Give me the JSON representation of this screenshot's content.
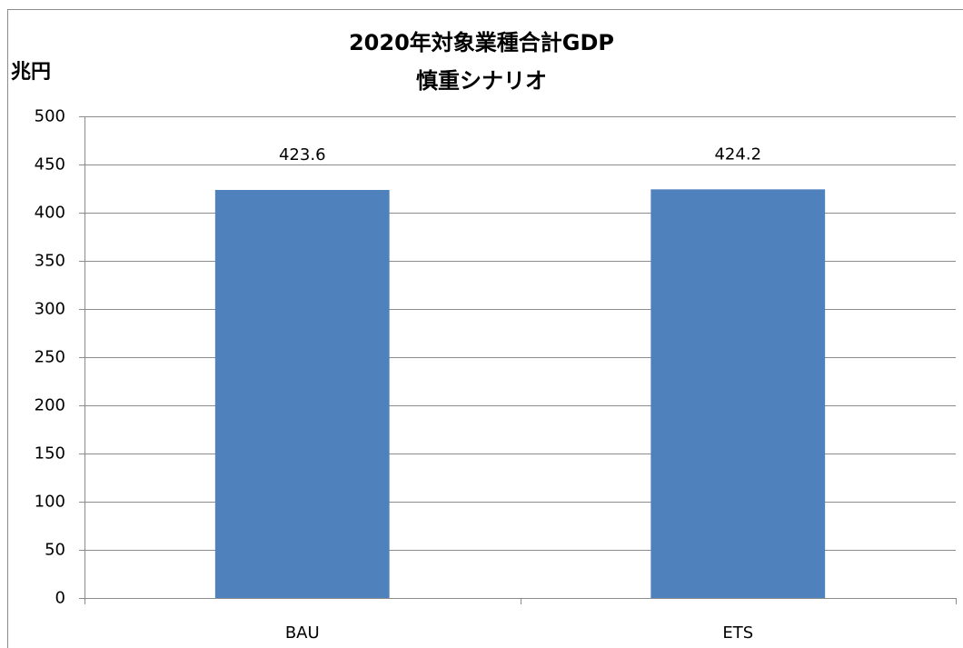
{
  "chart_data": {
    "type": "bar",
    "title": "2020年対象業種合計GDP",
    "subtitle": "慎重シナリオ",
    "y_label": "兆円",
    "categories": [
      "BAU",
      "ETS"
    ],
    "values": [
      423.6,
      424.2
    ],
    "color": "#4f81bd",
    "ylim": [
      0,
      500
    ],
    "yticks": [
      0,
      50,
      100,
      150,
      200,
      250,
      300,
      350,
      400,
      450,
      500
    ],
    "grid": true,
    "data_labels": true
  }
}
